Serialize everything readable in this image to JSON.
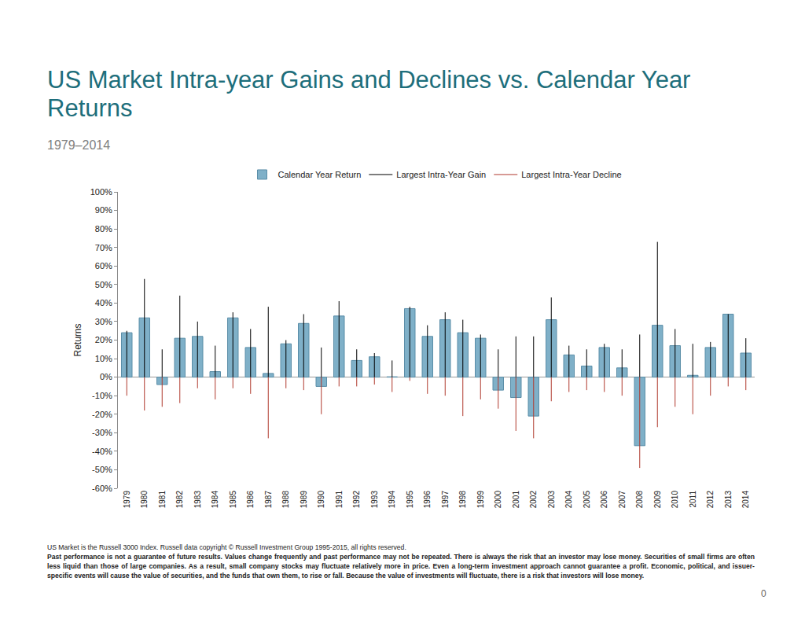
{
  "chart_data": {
    "type": "bar",
    "title": "US Market Intra-year Gains and Declines vs. Calendar Year Returns",
    "subtitle": "1979–2014",
    "y_label": "Returns",
    "categories": [
      "1979",
      "1980",
      "1981",
      "1982",
      "1983",
      "1984",
      "1985",
      "1986",
      "1987",
      "1988",
      "1989",
      "1990",
      "1991",
      "1992",
      "1993",
      "1994",
      "1995",
      "1996",
      "1997",
      "1998",
      "1999",
      "2000",
      "2001",
      "2002",
      "2003",
      "2004",
      "2005",
      "2006",
      "2007",
      "2008",
      "2009",
      "2010",
      "2011",
      "2012",
      "2013",
      "2014"
    ],
    "series": [
      {
        "name": "Calendar Year Return",
        "type": "bar",
        "color": "#7fb0c8",
        "values": [
          24,
          32,
          -4,
          21,
          22,
          3,
          32,
          16,
          2,
          18,
          29,
          -5,
          33,
          9,
          11,
          0.2,
          37,
          22,
          31,
          24,
          21,
          -7,
          -11,
          -21,
          31,
          12,
          6,
          16,
          5,
          -37,
          28,
          17,
          1,
          16,
          34,
          13
        ]
      },
      {
        "name": "Largest Intra-Year Gain",
        "type": "line",
        "color": "#000000",
        "values": [
          25,
          53,
          15,
          44,
          30,
          17,
          35,
          26,
          38,
          20,
          34,
          16,
          41,
          15,
          13,
          9,
          38,
          28,
          35,
          31,
          23,
          15,
          22,
          22,
          43,
          17,
          15,
          18,
          15,
          23,
          73,
          26,
          18,
          19,
          34,
          21
        ]
      },
      {
        "name": "Largest Intra-Year Decline",
        "type": "line",
        "color": "#b03a2e",
        "values": [
          -10,
          -18,
          -16,
          -14,
          -6,
          -12,
          -6,
          -9,
          -33,
          -6,
          -7,
          -20,
          -5,
          -5,
          -4,
          -8,
          -2,
          -9,
          -10,
          -21,
          -12,
          -17,
          -29,
          -33,
          -13,
          -8,
          -7,
          -8,
          -10,
          -49,
          -27,
          -16,
          -20,
          -10,
          -5,
          -7
        ]
      }
    ],
    "ylim": [
      -60,
      100
    ],
    "yticks": [
      {
        "value": -60,
        "label": "-60%"
      },
      {
        "value": -50,
        "label": "-50%"
      },
      {
        "value": -40,
        "label": "-40%"
      },
      {
        "value": -30,
        "label": "-30%"
      },
      {
        "value": -20,
        "label": "-20%"
      },
      {
        "value": -10,
        "label": "-10%"
      },
      {
        "value": 0,
        "label": "0%"
      },
      {
        "value": 10,
        "label": "10%"
      },
      {
        "value": 20,
        "label": "20%"
      },
      {
        "value": 30,
        "label": "30%"
      },
      {
        "value": 40,
        "label": "40%"
      },
      {
        "value": 50,
        "label": "50%"
      },
      {
        "value": 60,
        "label": "60%"
      },
      {
        "value": 70,
        "label": "70%"
      },
      {
        "value": 80,
        "label": "80%"
      },
      {
        "value": 90,
        "label": "90%"
      },
      {
        "value": 100,
        "label": "100%"
      }
    ],
    "grid": false,
    "legend": "top",
    "footnotes": [
      "US Market is the Russell 3000 Index. Russell data copyright © Russell Investment Group 1995-2015, all rights reserved.",
      "Past performance is not a guarantee of future results. Values change frequently and past performance may not be repeated. There is always the risk that an investor may lose money. Securities of small firms are often less liquid than those of large companies. As a result, small company stocks may fluctuate relatively more in price. Even a long-term investment approach cannot guarantee a profit. Economic, political, and issuer-specific events will cause the value of securities, and the funds that own them, to rise or fall. Because the value of investments will fluctuate, there is a risk that investors will lose money."
    ],
    "page_number": "0"
  }
}
